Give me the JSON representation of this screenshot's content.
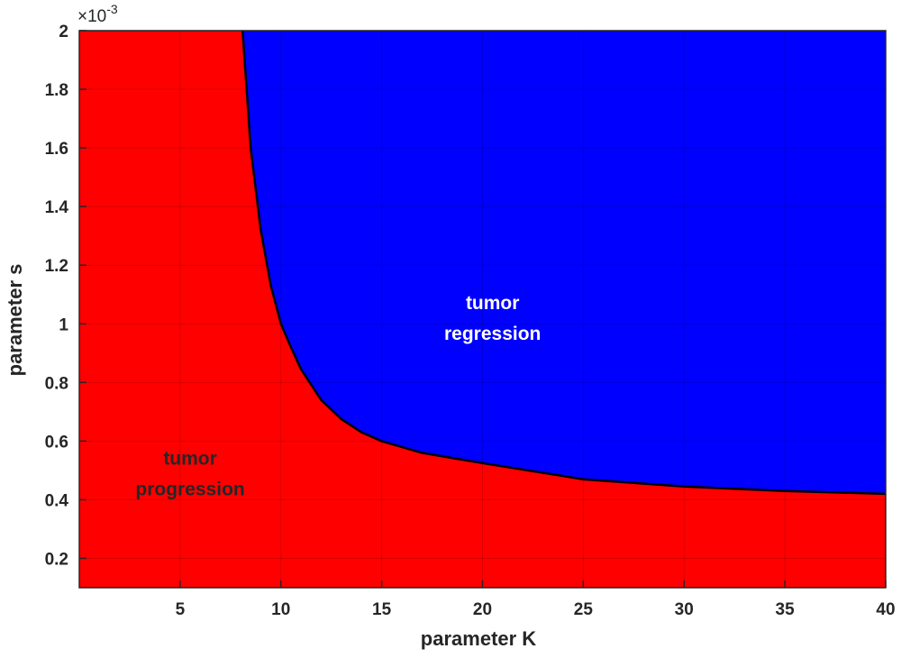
{
  "chart_data": {
    "type": "area",
    "xlabel": "parameter K",
    "ylabel": "parameter s",
    "xlim": [
      0,
      40
    ],
    "ylim": [
      0.1,
      2
    ],
    "y_exponent_label": "×10",
    "y_exponent_power": "-3",
    "xticks": [
      5,
      10,
      15,
      20,
      25,
      30,
      35,
      40
    ],
    "xtick_labels": [
      "5",
      "10",
      "15",
      "20",
      "25",
      "30",
      "35",
      "40"
    ],
    "yticks": [
      0.2,
      0.4,
      0.6,
      0.8,
      1,
      1.2,
      1.4,
      1.6,
      1.8,
      2
    ],
    "ytick_labels": [
      "0.2",
      "0.4",
      "0.6",
      "0.8",
      "1",
      "1.2",
      "1.4",
      "1.6",
      "1.8",
      "2"
    ],
    "grid": true,
    "boundary": {
      "x": [
        8.1,
        8.5,
        9,
        9.5,
        10,
        10.5,
        11,
        12,
        13,
        14,
        15,
        17,
        20,
        25,
        30,
        35,
        40
      ],
      "y": [
        2.0,
        1.6,
        1.32,
        1.13,
        1.0,
        0.92,
        0.845,
        0.74,
        0.675,
        0.63,
        0.6,
        0.56,
        0.525,
        0.47,
        0.445,
        0.43,
        0.42
      ]
    },
    "regions": [
      {
        "name": "tumor progression",
        "position": "below-left",
        "color": "#ff0000"
      },
      {
        "name": "tumor regression",
        "position": "above-right",
        "color": "#0000ff"
      }
    ],
    "annotations": [
      {
        "lines": [
          "tumor",
          "progression"
        ],
        "x": 5.5,
        "y": 0.52,
        "color": "#262626"
      },
      {
        "lines": [
          "tumor",
          "regression"
        ],
        "x": 20.5,
        "y": 1.05,
        "color": "#ffffff"
      }
    ]
  }
}
